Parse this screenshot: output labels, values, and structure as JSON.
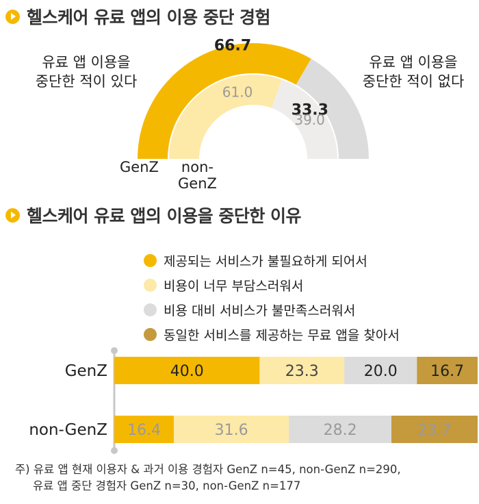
{
  "section1": {
    "title": "헬스케어 유료 앱의 이용 중단 경험"
  },
  "section2": {
    "title": "헬스케어 유료 앱의 이용을 중단한 이유"
  },
  "labels": {
    "stopped": [
      "유료 앱 이용을",
      "중단한 적이 있다"
    ],
    "not_stopped": [
      "유료 앱 이용을",
      "중단한 적이 없다"
    ],
    "genz": "GenZ",
    "nongenz": [
      "non-",
      "GenZ"
    ]
  },
  "colors": {
    "genz_stopped": "#f5b800",
    "genz_not": "#dcdcdc",
    "nongenz_stopped": "#fde9a8",
    "nongenz_not": "#efedeb",
    "reason1": "#f5b800",
    "reason2": "#fde9a8",
    "reason3": "#dcdcdc",
    "reason4": "#c49a3c"
  },
  "chart_data": [
    {
      "type": "pie",
      "title": "헬스케어 유료 앱의 이용 중단 경험",
      "series": [
        {
          "name": "GenZ",
          "categories": [
            "유료 앱 이용을 중단한 적이 있다",
            "유료 앱 이용을 중단한 적이 없다"
          ],
          "values": [
            66.7,
            33.3
          ]
        },
        {
          "name": "non-GenZ",
          "categories": [
            "유료 앱 이용을 중단한 적이 있다",
            "유료 앱 이용을 중단한 적이 없다"
          ],
          "values": [
            61.0,
            39.0
          ]
        }
      ]
    },
    {
      "type": "bar",
      "stacked": true,
      "orientation": "horizontal",
      "title": "헬스케어 유료 앱의 이용을 중단한 이유",
      "categories": [
        "GenZ",
        "non-GenZ"
      ],
      "series": [
        {
          "name": "제공되는 서비스가 불필요하게 되어서",
          "values": [
            40.0,
            16.4
          ]
        },
        {
          "name": "비용이 너무 부담스러워서",
          "values": [
            23.3,
            31.6
          ]
        },
        {
          "name": "비용 대비 서비스가 불만족스러워서",
          "values": [
            20.0,
            28.2
          ]
        },
        {
          "name": "동일한 서비스를 제공하는 무료 앱을 찾아서",
          "values": [
            16.7,
            23.7
          ]
        }
      ],
      "legend": "top"
    }
  ],
  "footnote": {
    "line1": "주) 유료 앱 현재 이용자 & 과거 이용 경험자 GenZ n=45, non-GenZ n=290,",
    "line2": "유료 앱 중단 경험자 GenZ n=30, non-GenZ n=177"
  }
}
